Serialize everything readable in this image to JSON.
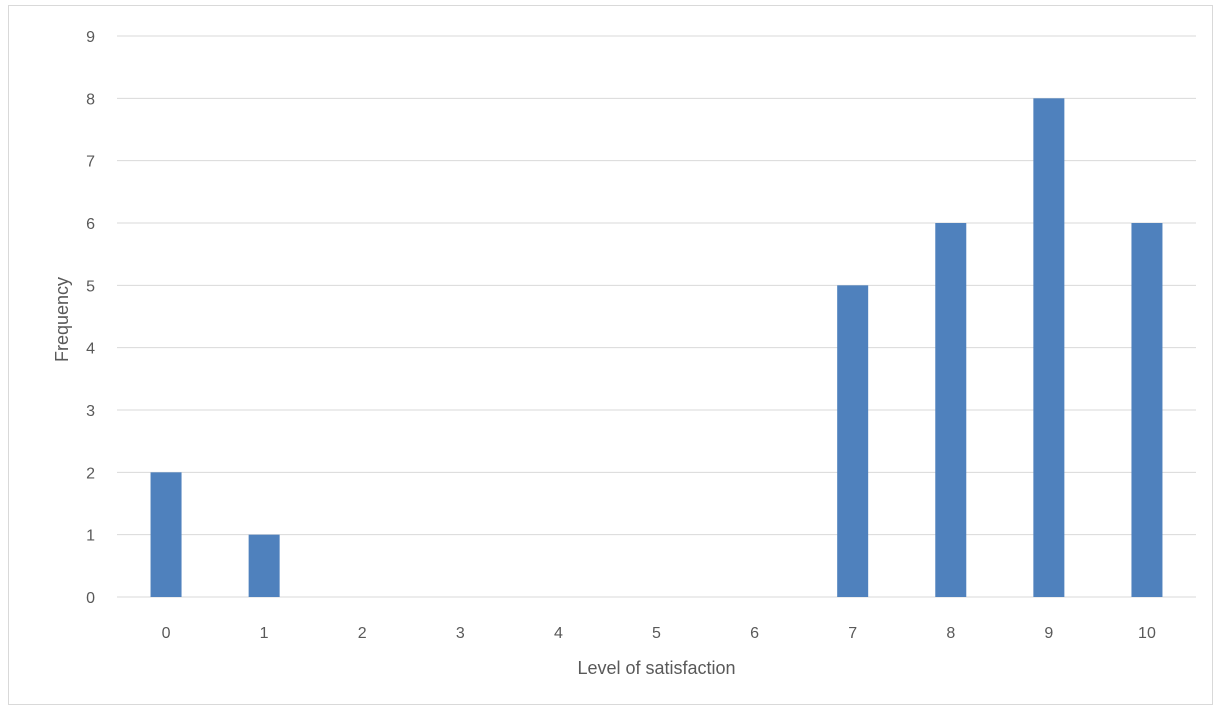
{
  "chart_data": {
    "type": "bar",
    "title": "",
    "xlabel": "Level of satisfaction",
    "ylabel": "Frequency",
    "categories": [
      "0",
      "1",
      "2",
      "3",
      "4",
      "5",
      "6",
      "7",
      "8",
      "9",
      "10"
    ],
    "series": [
      {
        "values": [
          2,
          1,
          0,
          0,
          0,
          0,
          0,
          5,
          6,
          8,
          6
        ],
        "color": "#4f81bd"
      }
    ],
    "ylim": [
      0,
      9
    ],
    "yticks": [
      "0",
      "1",
      "2",
      "3",
      "4",
      "5",
      "6",
      "7",
      "8",
      "9"
    ],
    "grid": "horizontal",
    "legend": "none",
    "colors": {
      "bar": "#4f81bd",
      "grid": "#d9d9d9",
      "axis": "#d9d9d9",
      "text": "#595959"
    }
  }
}
